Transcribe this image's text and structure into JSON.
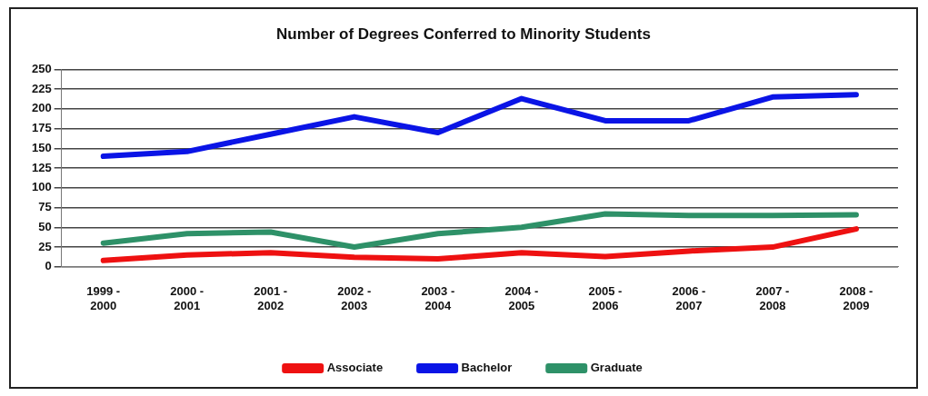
{
  "chart_data": {
    "type": "line",
    "title": "Number of Degrees Conferred to Minority Students",
    "categories": [
      "1999 - 2000",
      "2000 - 2001",
      "2001 - 2002",
      "2002 - 2003",
      "2003 - 2004",
      "2004 - 2005",
      "2005 - 2006",
      "2006 - 2007",
      "2007 - 2008",
      "2008 - 2009"
    ],
    "series": [
      {
        "name": "Associate",
        "color": "#ee1111",
        "values": [
          8,
          15,
          18,
          12,
          10,
          18,
          13,
          20,
          25,
          48
        ]
      },
      {
        "name": "Bachelor",
        "color": "#0a14e6",
        "values": [
          140,
          146,
          168,
          190,
          170,
          213,
          185,
          185,
          215,
          218
        ]
      },
      {
        "name": "Graduate",
        "color": "#2e9168",
        "values": [
          30,
          42,
          44,
          25,
          42,
          50,
          67,
          65,
          65,
          66
        ]
      }
    ],
    "ylim": [
      0,
      250
    ],
    "yticks": [
      0,
      25,
      50,
      75,
      100,
      125,
      150,
      175,
      200,
      225,
      250
    ],
    "grid": "y",
    "legend": "bottom",
    "marker": "none",
    "line_style": "solid"
  }
}
